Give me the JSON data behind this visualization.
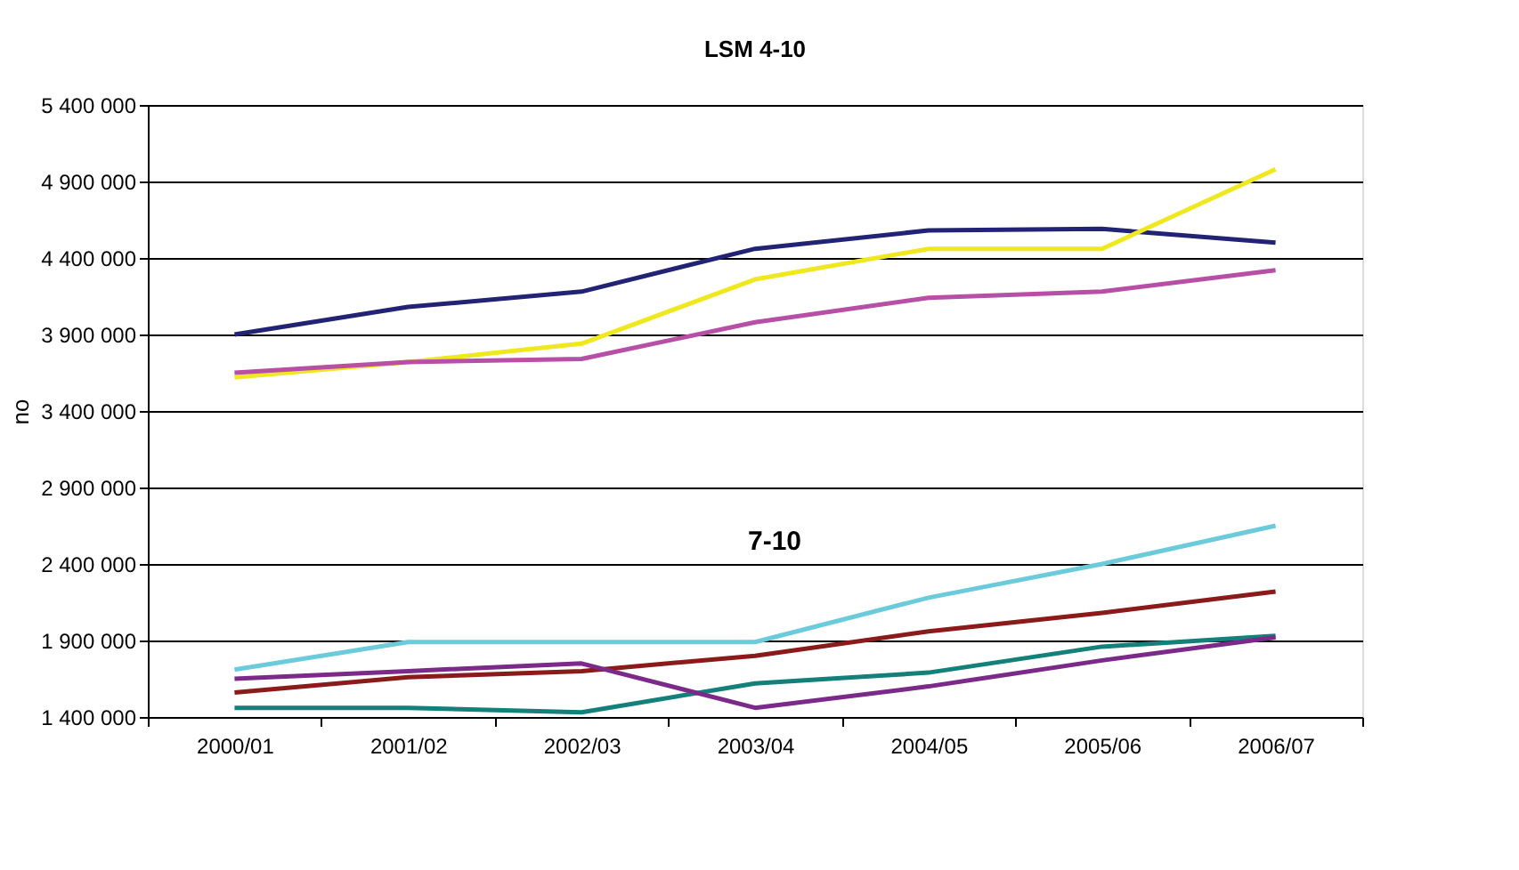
{
  "chart_data": {
    "type": "line",
    "title": "LSM 4-10",
    "ylabel": "no",
    "categories": [
      "2000/01",
      "2001/02",
      "2002/03",
      "2003/04",
      "2004/05",
      "2005/06",
      "2006/07"
    ],
    "series": [
      {
        "color": "#232376",
        "values": [
          3900000,
          4080000,
          4180000,
          4460000,
          4580000,
          4590000,
          4500000
        ]
      },
      {
        "color": "#f0e81e",
        "values": [
          3620000,
          3720000,
          3840000,
          4260000,
          4460000,
          4460000,
          4980000
        ]
      },
      {
        "color": "#b84fa6",
        "values": [
          3650000,
          3720000,
          3740000,
          3980000,
          4140000,
          4180000,
          4320000
        ]
      },
      {
        "color": "#6ccbdb",
        "values": [
          1710000,
          1890000,
          1890000,
          1890000,
          2180000,
          2400000,
          2650000
        ]
      },
      {
        "color": "#8b1a1a",
        "values": [
          1560000,
          1660000,
          1700000,
          1800000,
          1960000,
          2080000,
          2220000
        ]
      },
      {
        "color": "#13807a",
        "values": [
          1460000,
          1460000,
          1430000,
          1620000,
          1690000,
          1860000,
          1930000
        ]
      },
      {
        "color": "#7b2a8a",
        "values": [
          1650000,
          1700000,
          1750000,
          1460000,
          1600000,
          1770000,
          1920000
        ]
      }
    ],
    "ylim": [
      1400000,
      5400000
    ],
    "yticks": [
      {
        "value": 1400000,
        "label": "1 400 000"
      },
      {
        "value": 1900000,
        "label": "1 900 000"
      },
      {
        "value": 2400000,
        "label": "2 400 000"
      },
      {
        "value": 2900000,
        "label": "2 900 000"
      },
      {
        "value": 3400000,
        "label": "3 400 000"
      },
      {
        "value": 3900000,
        "label": "3 900 000"
      },
      {
        "value": 4400000,
        "label": "4 400 000"
      },
      {
        "value": 4900000,
        "label": "4 900 000"
      },
      {
        "value": 5400000,
        "label": "5 400 000"
      }
    ],
    "annotations": [
      "7-10"
    ],
    "grid": "y",
    "legend": false,
    "marker": "none",
    "line_style": "solid"
  }
}
